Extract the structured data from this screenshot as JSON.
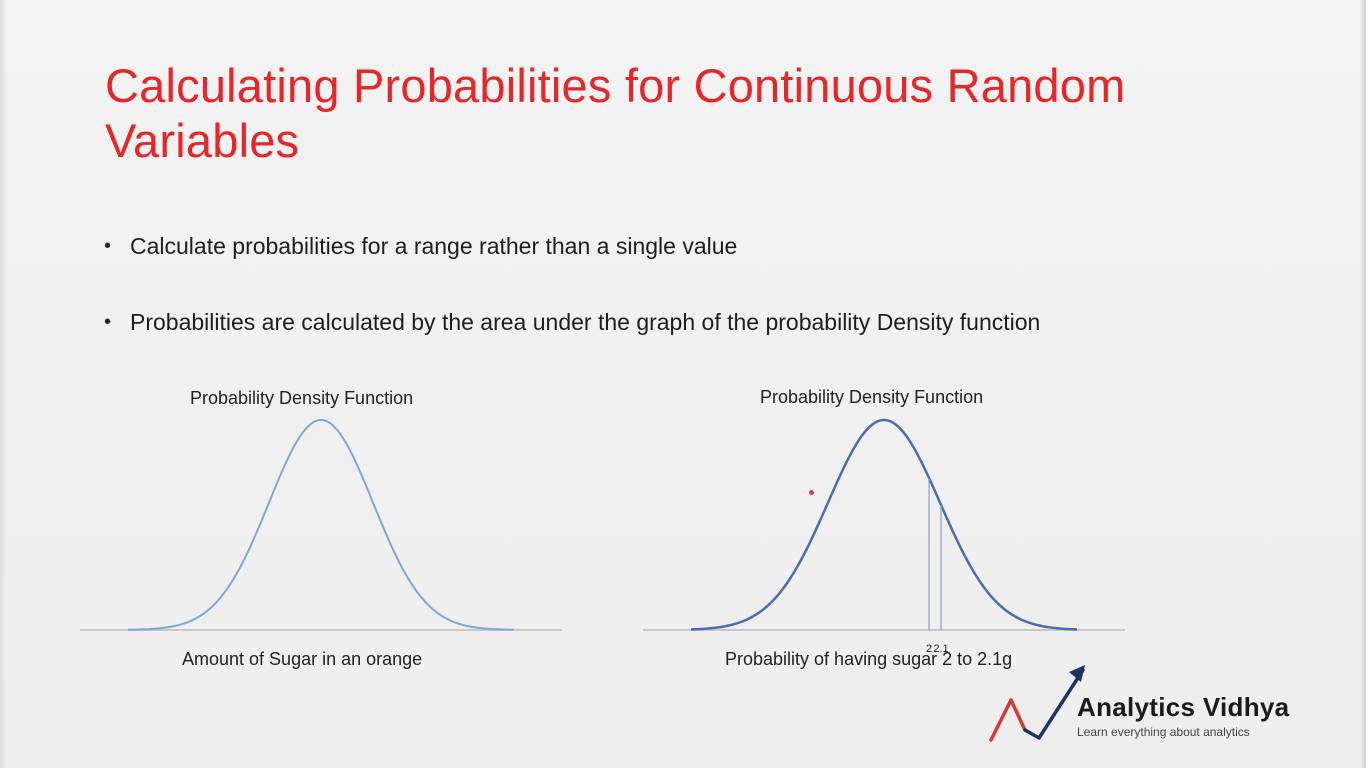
{
  "slide": {
    "title": "Calculating Probabilities for Continuous Random Variables",
    "bullets": [
      "Calculate probabilities for a range rather than a single value",
      "Probabilities are calculated by the area under the graph of the probability Density function"
    ]
  },
  "chart_data": [
    {
      "type": "line",
      "title": "Probability Density Function",
      "xlabel": "Amount of Sugar in an orange",
      "ylabel": "",
      "curve": "normal",
      "color": "#7ea7d8",
      "markers": []
    },
    {
      "type": "line",
      "title": "Probability Density Function",
      "xlabel": "Probability of having sugar 2 to 2.1g",
      "ylabel": "",
      "curve": "normal",
      "color": "#4a6cb0",
      "markers": [
        {
          "label": "2",
          "x": 2
        },
        {
          "label": "2.1",
          "x": 2.1
        }
      ]
    }
  ],
  "logo": {
    "name": "Analytics Vidhya",
    "tagline": "Learn everything about analytics",
    "accent_red": "#d9372f",
    "accent_navy": "#1d3566"
  }
}
